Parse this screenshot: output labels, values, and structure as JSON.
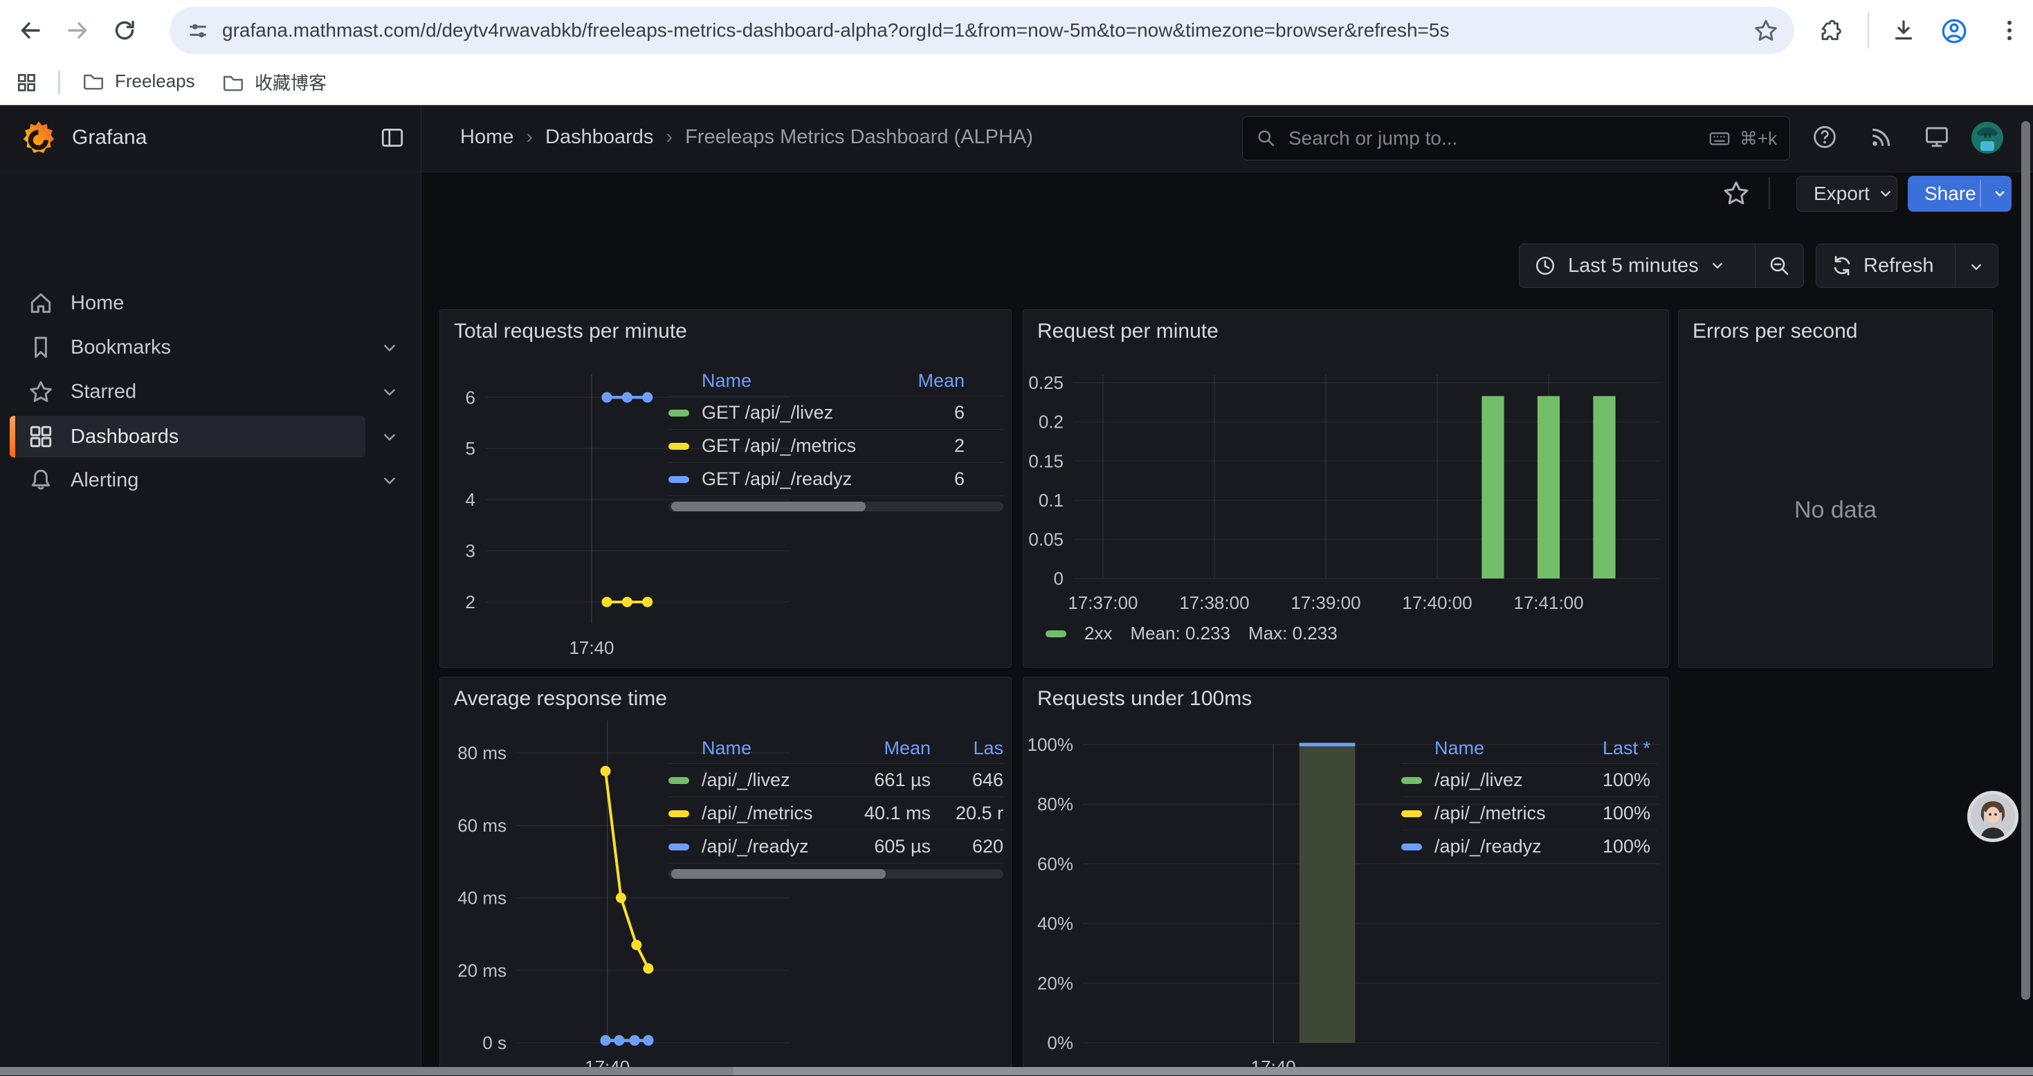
{
  "browser": {
    "url": "grafana.mathmast.com/d/deytv4rwavabkb/freeleaps-metrics-dashboard-alpha?orgId=1&from=now-5m&to=now&timezone=browser&refresh=5s",
    "bookmarks": [
      {
        "label": "Freeleaps"
      },
      {
        "label": "收藏博客"
      }
    ]
  },
  "grafana": {
    "brand": "Grafana",
    "sidebar": [
      {
        "label": "Home"
      },
      {
        "label": "Bookmarks"
      },
      {
        "label": "Starred"
      },
      {
        "label": "Dashboards"
      },
      {
        "label": "Alerting"
      }
    ],
    "breadcrumbs": {
      "home": "Home",
      "section": "Dashboards",
      "current": "Freeleaps Metrics Dashboard (ALPHA)",
      "separator": "›"
    },
    "search": {
      "placeholder": "Search or jump to...",
      "shortcut": "⌘+k"
    },
    "actions": {
      "export": "Export",
      "share": "Share"
    },
    "time": {
      "range": "Last 5 minutes",
      "refresh": "Refresh"
    }
  },
  "panels": [
    {
      "title": "Total requests per minute",
      "chart_data": {
        "type": "line",
        "x_window": [
          "17:38:15",
          "17:43:15"
        ],
        "ylim": [
          1.58,
          6.45
        ],
        "yticks": [
          {
            "value": 6,
            "label": "6"
          },
          {
            "value": 5,
            "label": "5"
          },
          {
            "value": 4,
            "label": "4"
          },
          {
            "value": 3,
            "label": "3"
          },
          {
            "value": 2,
            "label": "2"
          }
        ],
        "xticks": [
          {
            "time": "17:40:00",
            "label": "17:40"
          }
        ],
        "series": [
          {
            "name": "GET /api/_/livez",
            "color": "#73bf69",
            "points": [
              {
                "time": "17:40:15",
                "value": 6
              },
              {
                "time": "17:40:35",
                "value": 6
              },
              {
                "time": "17:40:55",
                "value": 6
              }
            ]
          },
          {
            "name": "GET /api/_/metrics",
            "color": "#fade2a",
            "points": [
              {
                "time": "17:40:15",
                "value": 2
              },
              {
                "time": "17:40:35",
                "value": 2
              },
              {
                "time": "17:40:55",
                "value": 2
              }
            ]
          },
          {
            "name": "GET /api/_/readyz",
            "color": "#6e9fff",
            "points": [
              {
                "time": "17:40:15",
                "value": 6
              },
              {
                "time": "17:40:35",
                "value": 6
              },
              {
                "time": "17:40:55",
                "value": 6
              }
            ]
          }
        ]
      },
      "legend_table": {
        "columns": [
          "Name",
          "Mean"
        ],
        "rows": [
          {
            "color": "#73bf69",
            "cells": [
              "GET /api/_/livez",
              "6"
            ]
          },
          {
            "color": "#fade2a",
            "cells": [
              "GET /api/_/metrics",
              "2"
            ]
          },
          {
            "color": "#6e9fff",
            "cells": [
              "GET /api/_/readyz",
              "6"
            ]
          }
        ]
      }
    },
    {
      "title": "Request per minute",
      "chart_data": {
        "type": "bar",
        "x_window": [
          "17:36:44",
          "17:42:00"
        ],
        "ylim": [
          0,
          0.2607
        ],
        "bar_width_seconds": 12,
        "yticks": [
          {
            "value": 0.25,
            "label": "0.25"
          },
          {
            "value": 0.2,
            "label": "0.2"
          },
          {
            "value": 0.15,
            "label": "0.15"
          },
          {
            "value": 0.1,
            "label": "0.1"
          },
          {
            "value": 0.05,
            "label": "0.05"
          },
          {
            "value": 0,
            "label": "0"
          }
        ],
        "xticks": [
          {
            "time": "17:37:00",
            "label": "17:37:00"
          },
          {
            "time": "17:38:00",
            "label": "17:38:00"
          },
          {
            "time": "17:39:00",
            "label": "17:39:00"
          },
          {
            "time": "17:40:00",
            "label": "17:40:00"
          },
          {
            "time": "17:41:00",
            "label": "17:41:00"
          }
        ],
        "series": [
          {
            "name": "2xx",
            "color": "#73bf69",
            "mean": 0.233,
            "max": 0.233,
            "points": [
              {
                "time": "17:40:30",
                "value": 0.233
              },
              {
                "time": "17:41:00",
                "value": 0.233
              },
              {
                "time": "17:41:30",
                "value": 0.233
              }
            ]
          }
        ]
      },
      "legend": {
        "name": "2xx",
        "mean": "Mean: 0.233",
        "max": "Max: 0.233"
      }
    },
    {
      "title": "Errors per second",
      "no_data": "No data"
    },
    {
      "title": "Average response time",
      "chart_data": {
        "type": "line",
        "x_window": [
          "17:38:20",
          "17:43:20"
        ],
        "ylim": [
          0,
          89
        ],
        "yticks": [
          {
            "value": 80,
            "label": "80 ms"
          },
          {
            "value": 60,
            "label": "60 ms"
          },
          {
            "value": 40,
            "label": "40 ms"
          },
          {
            "value": 20,
            "label": "20 ms"
          },
          {
            "value": 0,
            "label": "0 s"
          }
        ],
        "xticks": [
          {
            "time": "17:40:00",
            "label": "17:40"
          }
        ],
        "series": [
          {
            "name": "/api/_/livez",
            "color": "#73bf69",
            "points": [
              {
                "time": "17:39:58",
                "value": 0.7
              },
              {
                "time": "17:40:13",
                "value": 0.7
              },
              {
                "time": "17:40:30",
                "value": 0.7
              },
              {
                "time": "17:40:45",
                "value": 0.7
              }
            ]
          },
          {
            "name": "/api/_/metrics",
            "color": "#fade2a",
            "points": [
              {
                "time": "17:39:58",
                "value": 75
              },
              {
                "time": "17:40:15",
                "value": 40
              },
              {
                "time": "17:40:32",
                "value": 27
              },
              {
                "time": "17:40:45",
                "value": 20.5
              }
            ]
          },
          {
            "name": "/api/_/readyz",
            "color": "#6e9fff",
            "points": [
              {
                "time": "17:39:58",
                "value": 0.6
              },
              {
                "time": "17:40:13",
                "value": 0.6
              },
              {
                "time": "17:40:30",
                "value": 0.6
              },
              {
                "time": "17:40:45",
                "value": 0.6
              }
            ]
          }
        ]
      },
      "legend_table": {
        "columns": [
          "Name",
          "Mean",
          "Las"
        ],
        "rows": [
          {
            "color": "#73bf69",
            "cells": [
              "/api/_/livez",
              "661 µs",
              "646"
            ]
          },
          {
            "color": "#fade2a",
            "cells": [
              "/api/_/metrics",
              "40.1 ms",
              "20.5 r"
            ]
          },
          {
            "color": "#6e9fff",
            "cells": [
              "/api/_/readyz",
              "605 µs",
              "620"
            ]
          }
        ]
      }
    },
    {
      "title": "Requests under 100ms",
      "chart_data": {
        "type": "bar",
        "x_window": [
          "17:38:21",
          "17:43:21"
        ],
        "ylim": [
          0,
          100
        ],
        "bar_width_seconds": 29,
        "yticks": [
          {
            "value": 100,
            "label": "100%"
          },
          {
            "value": 80,
            "label": "80%"
          },
          {
            "value": 60,
            "label": "60%"
          },
          {
            "value": 40,
            "label": "40%"
          },
          {
            "value": 20,
            "label": "20%"
          },
          {
            "value": 0,
            "label": "0%"
          }
        ],
        "xticks": [
          {
            "time": "17:40:00",
            "label": "17:40"
          }
        ],
        "series": [
          {
            "name": "under 100ms",
            "color": "#3f4836",
            "top_color": "#6e9fff",
            "points": [
              {
                "time": "17:40:28",
                "value": 100
              }
            ]
          }
        ]
      },
      "legend_table": {
        "columns": [
          "Name",
          "Last *"
        ],
        "rows": [
          {
            "color": "#73bf69",
            "cells": [
              "/api/_/livez",
              "100%"
            ]
          },
          {
            "color": "#fade2a",
            "cells": [
              "/api/_/metrics",
              "100%"
            ]
          },
          {
            "color": "#6e9fff",
            "cells": [
              "/api/_/readyz",
              "100%"
            ]
          }
        ]
      }
    }
  ]
}
